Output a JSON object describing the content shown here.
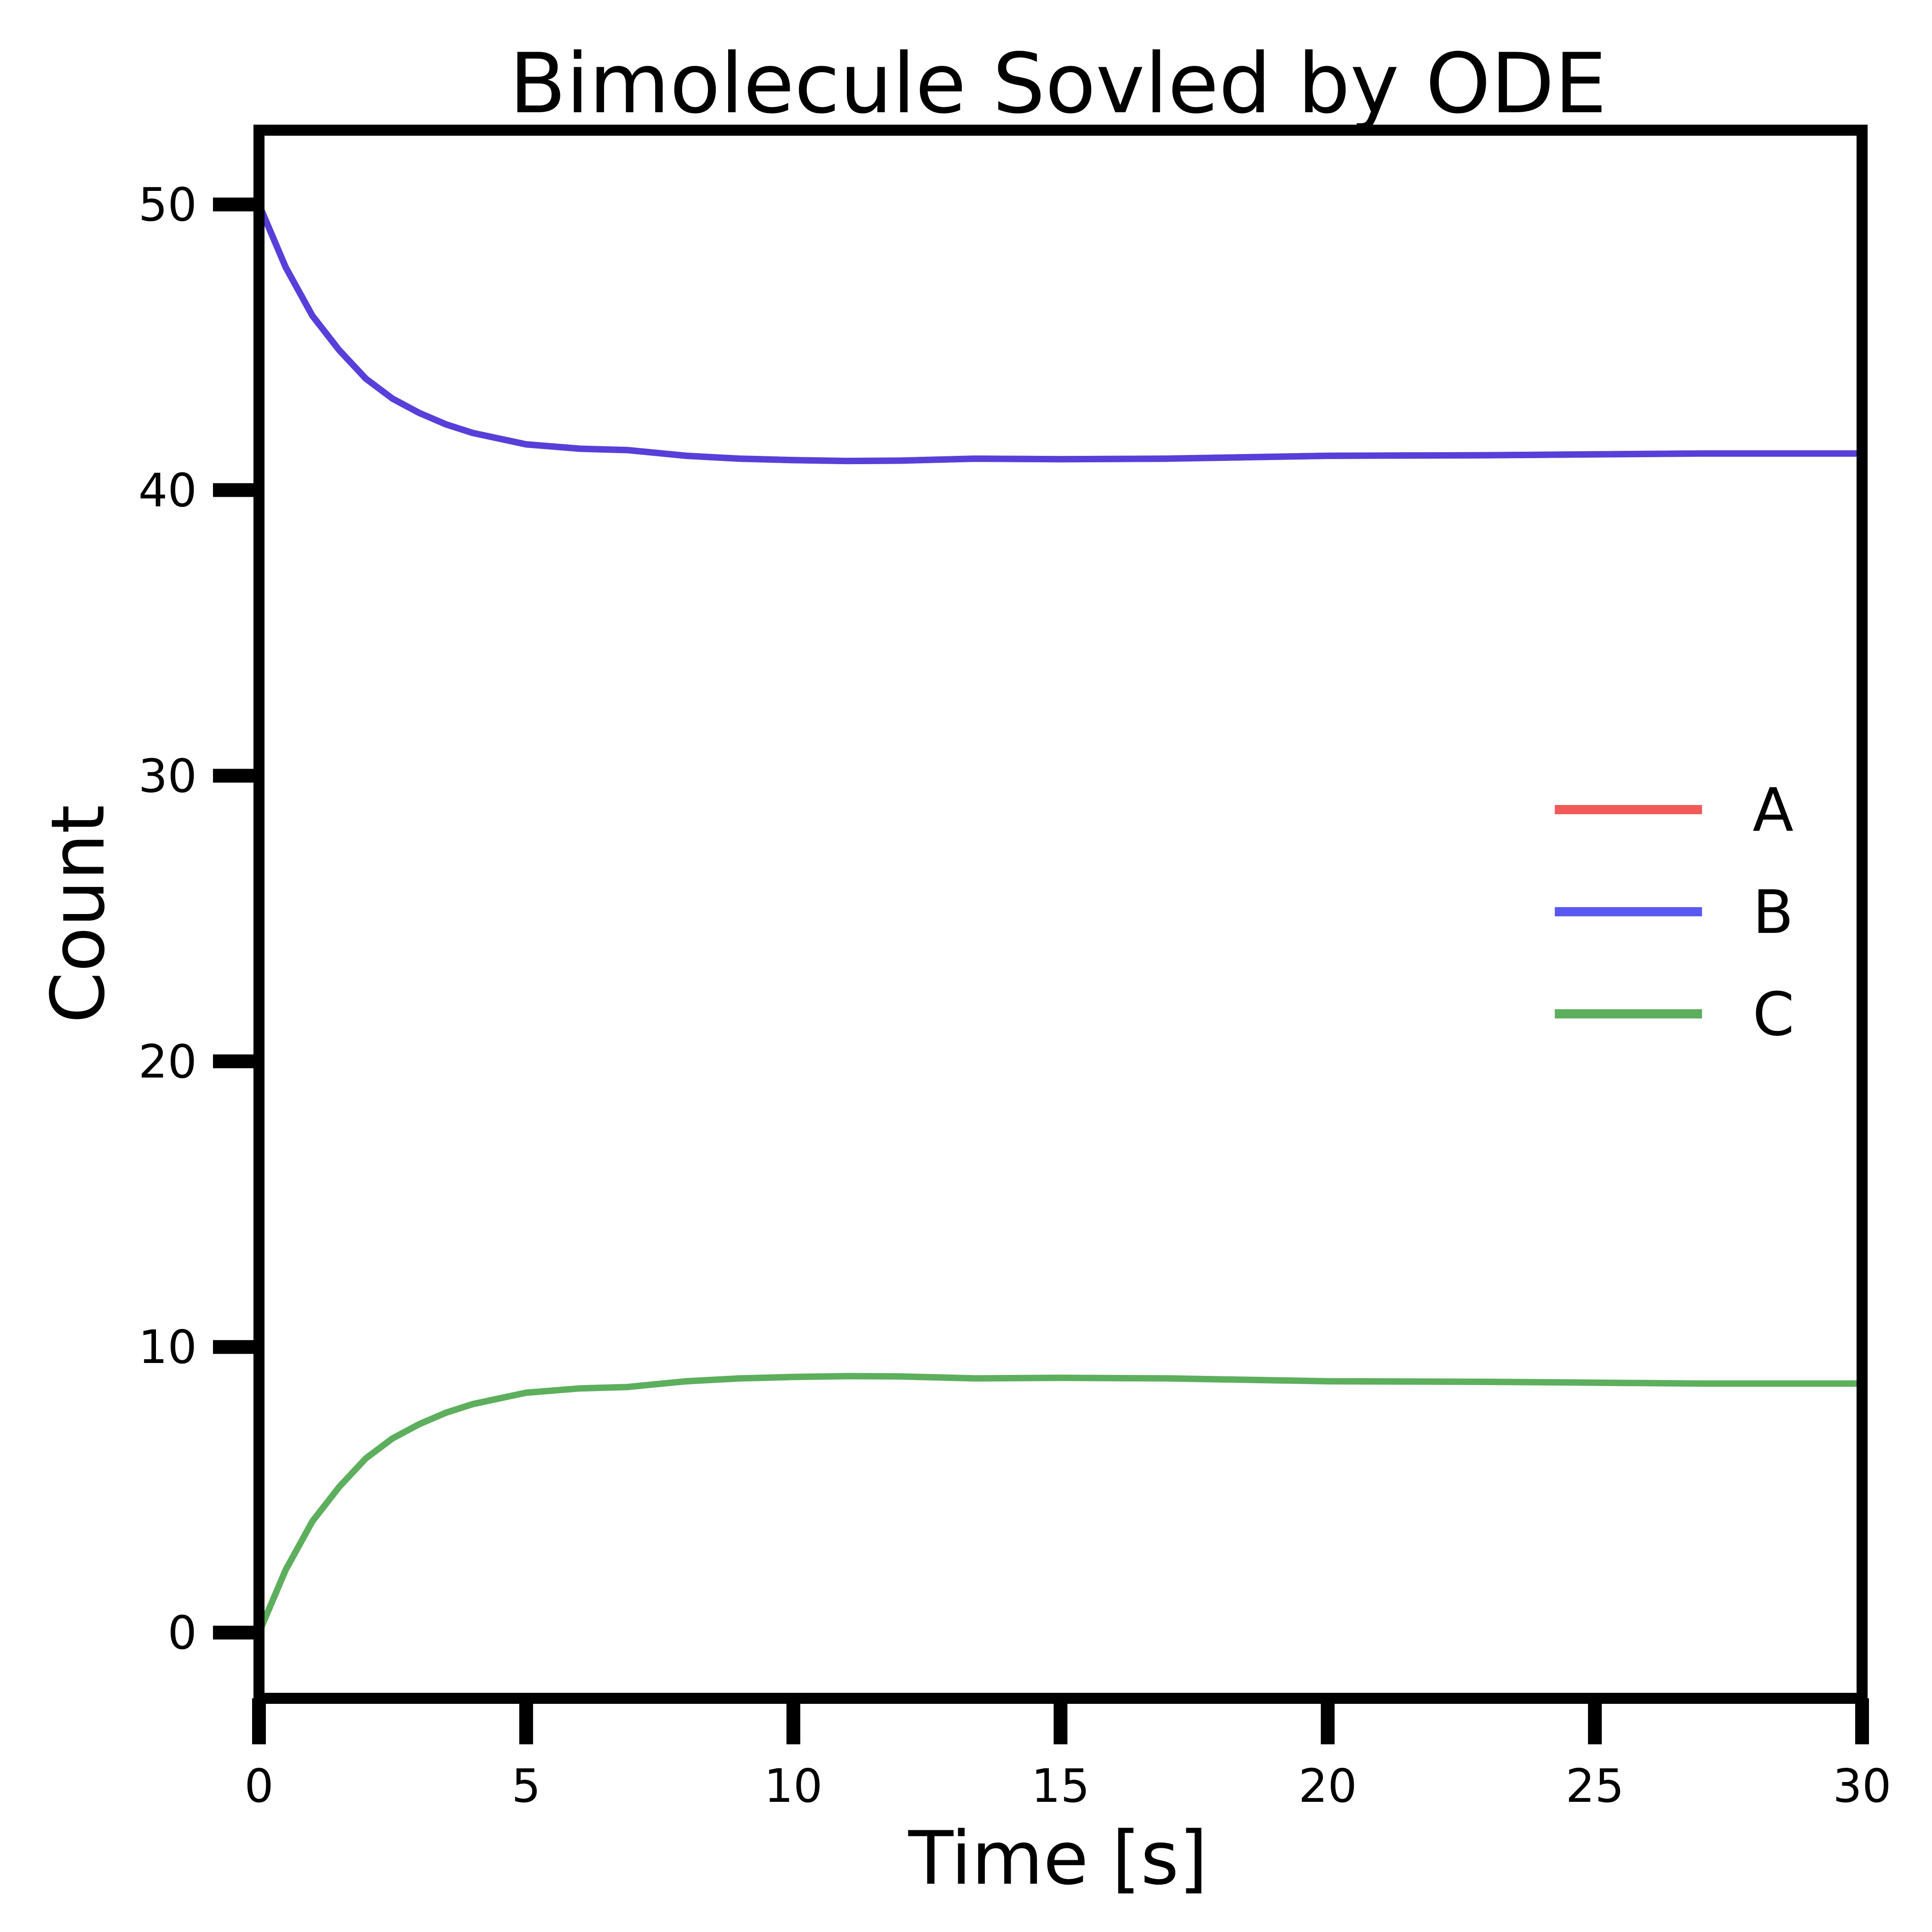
{
  "chart_data": {
    "type": "line",
    "title": "Bimolecule Sovled by ODE",
    "xlabel": "Time [s]",
    "ylabel": "Count",
    "xlim": [
      0,
      30
    ],
    "ylim": [
      -2.3,
      52.6
    ],
    "xticks": [
      0,
      5,
      10,
      15,
      20,
      25,
      30
    ],
    "yticks": [
      0,
      10,
      20,
      30,
      40,
      50
    ],
    "grid": false,
    "legend_position": "center-right",
    "x": [
      0,
      0.5,
      1,
      1.5,
      2,
      2.5,
      3,
      3.5,
      4,
      5,
      6,
      6.9,
      8,
      9,
      10,
      11,
      12,
      13.4,
      15,
      17,
      20,
      23,
      27,
      30
    ],
    "series": [
      {
        "name": "A",
        "color": "#f03c3c",
        "values": [
          50,
          47.8,
          46.1,
          44.9,
          43.9,
          43.2,
          42.7,
          42.3,
          42.0,
          41.6,
          41.45,
          41.4,
          41.2,
          41.1,
          41.05,
          41.02,
          41.03,
          41.1,
          41.08,
          41.1,
          41.2,
          41.22,
          41.28,
          41.28
        ]
      },
      {
        "name": "B",
        "color": "#3c3cf0",
        "values": [
          50,
          47.8,
          46.1,
          44.9,
          43.9,
          43.2,
          42.7,
          42.3,
          42.0,
          41.6,
          41.45,
          41.4,
          41.2,
          41.1,
          41.05,
          41.02,
          41.03,
          41.1,
          41.08,
          41.1,
          41.2,
          41.22,
          41.28,
          41.28
        ]
      },
      {
        "name": "C",
        "color": "#41a141",
        "values": [
          0,
          2.2,
          3.9,
          5.1,
          6.1,
          6.8,
          7.3,
          7.7,
          8.0,
          8.4,
          8.55,
          8.6,
          8.8,
          8.9,
          8.95,
          8.98,
          8.97,
          8.9,
          8.92,
          8.9,
          8.8,
          8.78,
          8.72,
          8.72
        ]
      }
    ]
  }
}
